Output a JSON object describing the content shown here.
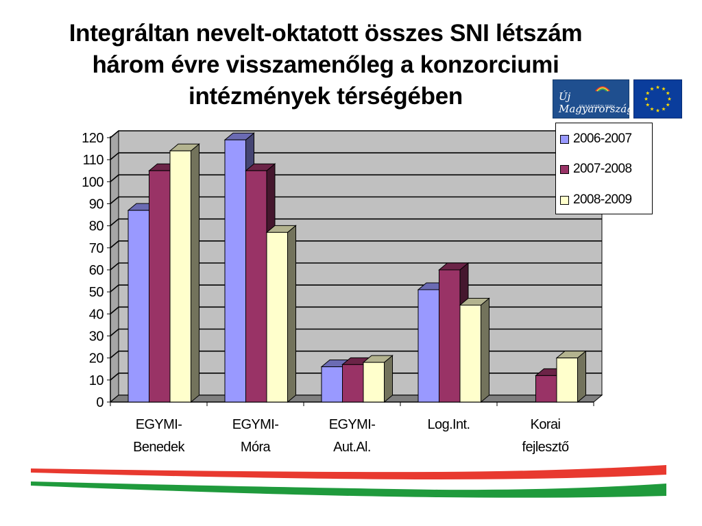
{
  "page": {
    "title": "Integráltan nevelt-oktatott összes SNI létszám három évre visszamenőleg a konzorciumi intézmények térségében",
    "logo_text": "Új Magyarország",
    "logo_subtext": "FEJLESZTÉSI TERV"
  },
  "chart_data": {
    "type": "bar",
    "title": "Integráltan nevelt-oktatott összes SNI létszám három évre visszamenőleg a konzorciumi intézmények térségében",
    "categories": [
      [
        "EGYMI-",
        "Benedek"
      ],
      [
        "EGYMI-",
        "Móra"
      ],
      [
        "EGYMI-",
        "Aut.Al."
      ],
      [
        "Log.Int.",
        ""
      ],
      [
        "Korai",
        "fejlesztő"
      ]
    ],
    "series": [
      {
        "name": "2006-2007",
        "color": "#9999ff",
        "values": [
          87,
          119,
          16,
          51,
          0
        ]
      },
      {
        "name": "2007-2008",
        "color": "#993366",
        "values": [
          105,
          105,
          17,
          60,
          12
        ]
      },
      {
        "name": "2008-2009",
        "color": "#ffffcc",
        "values": [
          114,
          77,
          18,
          44,
          20
        ]
      }
    ],
    "ylim": [
      0,
      120
    ],
    "yticks": [
      0,
      10,
      20,
      30,
      40,
      50,
      60,
      70,
      80,
      90,
      100,
      110,
      120
    ],
    "grid": true,
    "legend_position": "top-right",
    "wall_color": "#c0c0c0",
    "floor_color": "#808080"
  }
}
